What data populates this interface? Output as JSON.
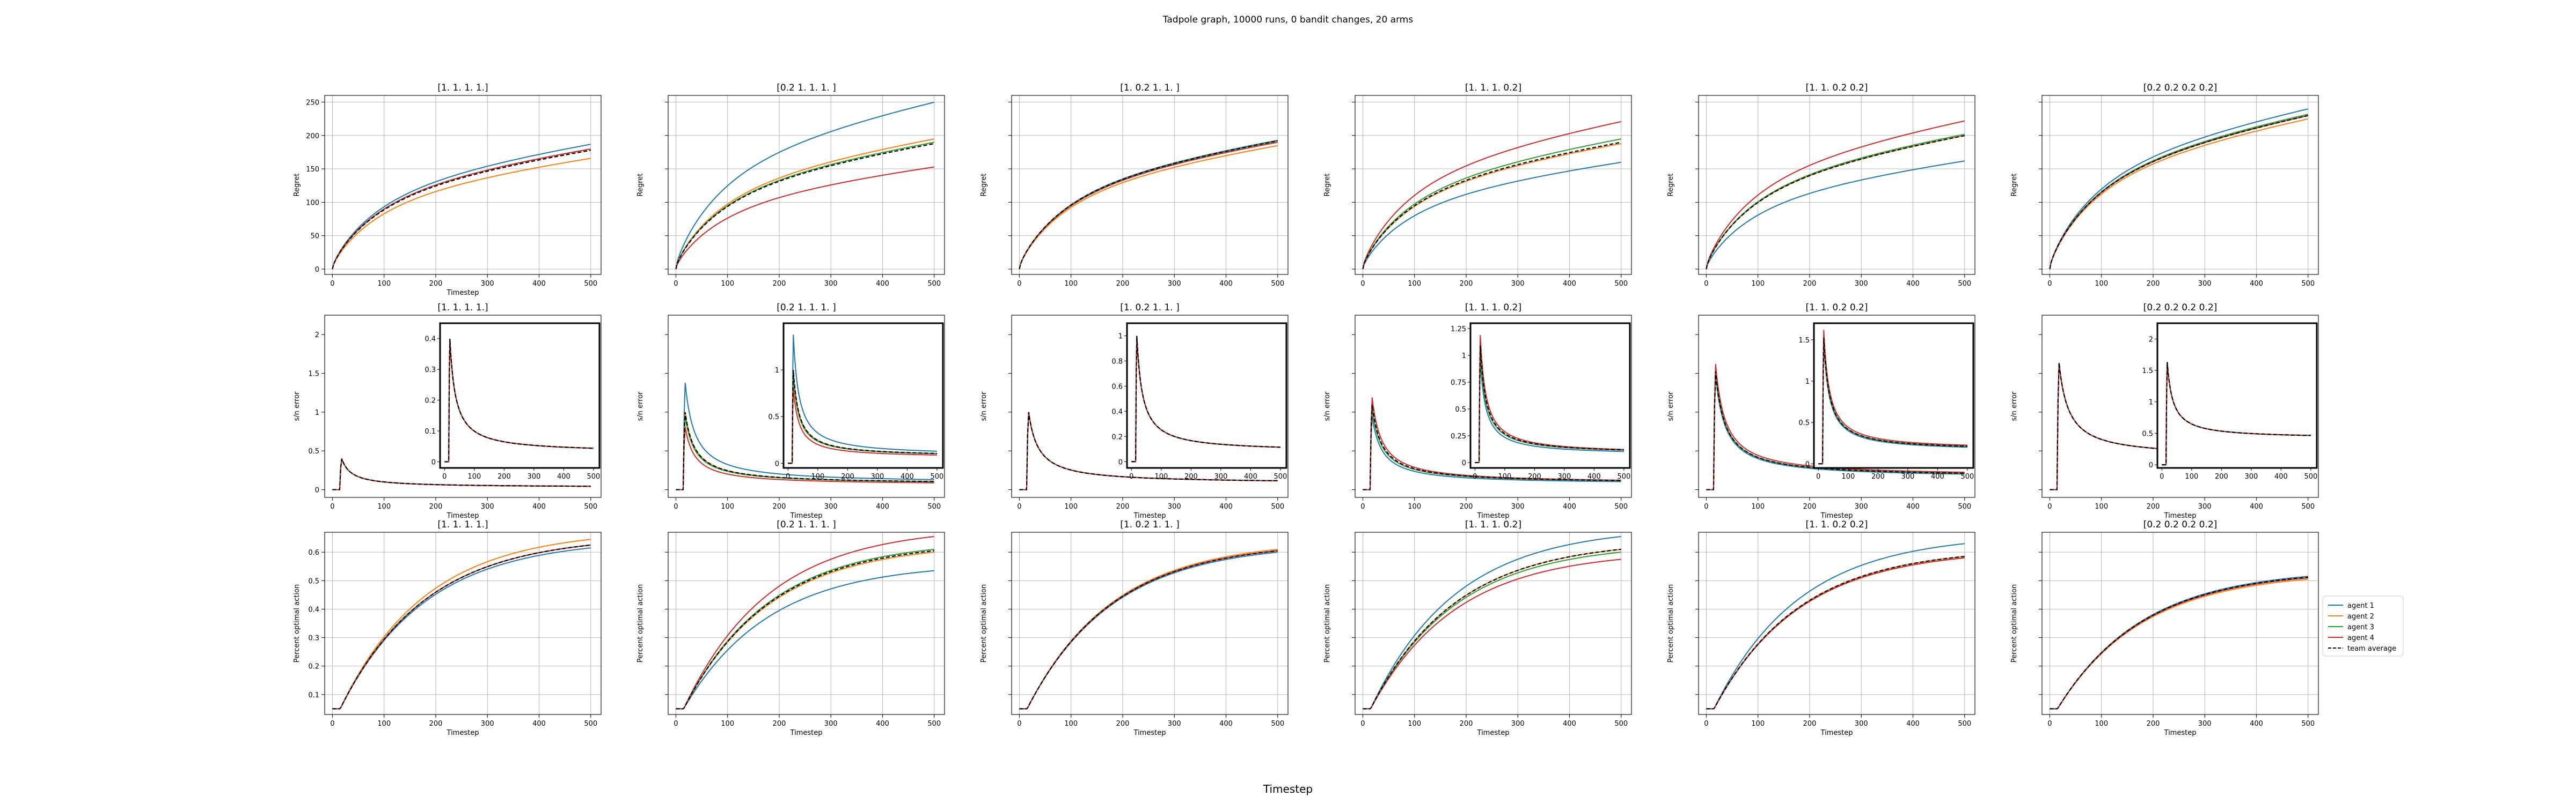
{
  "figure": {
    "suptitle": "Tadpole graph, 10000 runs, 0 bandit changes, 20 arms",
    "xlabel": "Timestep"
  },
  "colors": {
    "agent 1": "#1f77b4",
    "agent 2": "#ff7f0e",
    "agent 3": "#2ca02c",
    "agent 4": "#d62728",
    "team average": "#000000",
    "grid": "#b0b0b0"
  },
  "legend": {
    "location": "right of last bottom panel",
    "entries": [
      "agent 1",
      "agent 2",
      "agent 3",
      "agent 4",
      "team average"
    ]
  },
  "chart_data": [
    {
      "type": "line",
      "row": "regret",
      "title": "[1. 1. 1. 1.]",
      "xlabel": "Timestep",
      "ylabel": "Regret",
      "xlim": [
        -15,
        520
      ],
      "ylim": [
        -8,
        260
      ],
      "xticks": [
        0,
        100,
        200,
        300,
        400,
        500
      ],
      "yticks": [
        0,
        50,
        100,
        150,
        200,
        250
      ],
      "grid": true,
      "series": [
        {
          "name": "agent 1",
          "final": 187
        },
        {
          "name": "agent 2",
          "final": 166
        },
        {
          "name": "agent 3",
          "final": 180
        },
        {
          "name": "agent 4",
          "final": 180
        },
        {
          "name": "team average",
          "final": 178,
          "dashed": true
        }
      ]
    },
    {
      "type": "line",
      "row": "regret",
      "title": "[0.2 1.  1.  1. ]",
      "xlabel": "",
      "ylabel": "Regret",
      "xlim": [
        -15,
        520
      ],
      "ylim": [
        -8,
        260
      ],
      "xticks": [
        0,
        100,
        200,
        300,
        400,
        500
      ],
      "yticks": [],
      "grid": true,
      "series": [
        {
          "name": "agent 1",
          "final": 250
        },
        {
          "name": "agent 2",
          "final": 195
        },
        {
          "name": "agent 3",
          "final": 190
        },
        {
          "name": "agent 4",
          "final": 153
        },
        {
          "name": "team average",
          "final": 188,
          "dashed": true
        }
      ]
    },
    {
      "type": "line",
      "row": "regret",
      "title": "[1.  0.2 1.  1. ]",
      "xlabel": "",
      "ylabel": "Regret",
      "xlim": [
        -15,
        520
      ],
      "ylim": [
        -8,
        260
      ],
      "xticks": [
        0,
        100,
        200,
        300,
        400,
        500
      ],
      "yticks": [],
      "grid": true,
      "series": [
        {
          "name": "agent 1",
          "final": 193
        },
        {
          "name": "agent 2",
          "final": 185
        },
        {
          "name": "agent 3",
          "final": 192
        },
        {
          "name": "agent 4",
          "final": 190
        },
        {
          "name": "team average",
          "final": 192,
          "dashed": true
        }
      ]
    },
    {
      "type": "line",
      "row": "regret",
      "title": "[1.  1.  1.  0.2]",
      "xlabel": "",
      "ylabel": "Regret",
      "xlim": [
        -15,
        520
      ],
      "ylim": [
        -8,
        260
      ],
      "xticks": [
        0,
        100,
        200,
        300,
        400,
        500
      ],
      "yticks": [],
      "grid": true,
      "series": [
        {
          "name": "agent 1",
          "final": 160
        },
        {
          "name": "agent 2",
          "final": 188
        },
        {
          "name": "agent 3",
          "final": 195
        },
        {
          "name": "agent 4",
          "final": 221
        },
        {
          "name": "team average",
          "final": 190,
          "dashed": true
        }
      ]
    },
    {
      "type": "line",
      "row": "regret",
      "title": "[1.  1.  0.2 0.2]",
      "xlabel": "",
      "ylabel": "Regret",
      "xlim": [
        -15,
        520
      ],
      "ylim": [
        -8,
        260
      ],
      "xticks": [
        0,
        100,
        200,
        300,
        400,
        500
      ],
      "yticks": [],
      "grid": true,
      "series": [
        {
          "name": "agent 1",
          "final": 162
        },
        {
          "name": "agent 2",
          "final": 200
        },
        {
          "name": "agent 3",
          "final": 202
        },
        {
          "name": "agent 4",
          "final": 222
        },
        {
          "name": "team average",
          "final": 200,
          "dashed": true
        }
      ]
    },
    {
      "type": "line",
      "row": "regret",
      "title": "[0.2 0.2 0.2 0.2]",
      "xlabel": "",
      "ylabel": "Regret",
      "xlim": [
        -15,
        520
      ],
      "ylim": [
        -8,
        260
      ],
      "xticks": [
        0,
        100,
        200,
        300,
        400,
        500
      ],
      "yticks": [],
      "grid": true,
      "series": [
        {
          "name": "agent 1",
          "final": 240
        },
        {
          "name": "agent 2",
          "final": 225
        },
        {
          "name": "agent 3",
          "final": 232
        },
        {
          "name": "agent 4",
          "final": 230
        },
        {
          "name": "team average",
          "final": 230,
          "dashed": true
        }
      ]
    },
    {
      "type": "line",
      "row": "error",
      "title": "[1. 1. 1. 1.]",
      "xlabel": "Timestep",
      "ylabel": "s/n error",
      "xlim": [
        -15,
        520
      ],
      "ylim": [
        -0.1,
        2.25
      ],
      "xticks": [
        0,
        100,
        200,
        300,
        400,
        500
      ],
      "yticks": [
        0.0,
        0.5,
        1.0,
        1.5,
        2.0
      ],
      "grid": false,
      "series": [
        {
          "name": "agent 1",
          "peak": 0.42,
          "final": 0.03
        },
        {
          "name": "agent 2",
          "peak": 0.42,
          "final": 0.03
        },
        {
          "name": "agent 3",
          "peak": 0.42,
          "final": 0.03
        },
        {
          "name": "agent 4",
          "peak": 0.42,
          "final": 0.03
        },
        {
          "name": "team average",
          "peak": 0.42,
          "final": 0.03,
          "dashed": true
        }
      ],
      "inset": {
        "ylim": [
          -0.02,
          0.45
        ],
        "yticks": [
          0.0,
          0.1,
          0.2,
          0.3,
          0.4
        ],
        "xticks": [
          0,
          100,
          200,
          300,
          400,
          500
        ]
      }
    },
    {
      "type": "line",
      "row": "error",
      "title": "[0.2 1.  1.  1. ]",
      "xlabel": "Timestep",
      "ylabel": "s/n error",
      "xlim": [
        -15,
        520
      ],
      "ylim": [
        -0.1,
        2.25
      ],
      "xticks": [
        0,
        100,
        200,
        300,
        400,
        500
      ],
      "yticks": [],
      "grid": false,
      "series": [
        {
          "name": "agent 1",
          "peak": 1.45,
          "final": 0.08
        },
        {
          "name": "agent 2",
          "peak": 1.05,
          "final": 0.07
        },
        {
          "name": "agent 3",
          "peak": 1.0,
          "final": 0.07
        },
        {
          "name": "agent 4",
          "peak": 0.85,
          "final": 0.06
        },
        {
          "name": "team average",
          "peak": 1.05,
          "final": 0.07,
          "dashed": true
        }
      ],
      "inset": {
        "ylim": [
          -0.05,
          1.5
        ],
        "yticks": [
          0.0,
          0.5,
          1.0
        ],
        "xticks": [
          0,
          100,
          200,
          300,
          400,
          500
        ]
      }
    },
    {
      "type": "line",
      "row": "error",
      "title": "[1.  0.2 1.  1. ]",
      "xlabel": "Timestep",
      "ylabel": "s/n error",
      "xlim": [
        -15,
        520
      ],
      "ylim": [
        -0.1,
        2.25
      ],
      "xticks": [
        0,
        100,
        200,
        300,
        400,
        500
      ],
      "yticks": [],
      "grid": false,
      "series": [
        {
          "name": "agent 1",
          "peak": 1.05,
          "final": 0.08
        },
        {
          "name": "agent 2",
          "peak": 1.05,
          "final": 0.08
        },
        {
          "name": "agent 3",
          "peak": 1.05,
          "final": 0.08
        },
        {
          "name": "agent 4",
          "peak": 1.05,
          "final": 0.08
        },
        {
          "name": "team average",
          "peak": 1.05,
          "final": 0.08,
          "dashed": true
        }
      ],
      "inset": {
        "ylim": [
          -0.05,
          1.1
        ],
        "yticks": [
          0.0,
          0.2,
          0.4,
          0.6,
          0.8,
          1.0
        ],
        "xticks": [
          0,
          100,
          200,
          300,
          400,
          500
        ]
      }
    },
    {
      "type": "line",
      "row": "error",
      "title": "[1.  1.  1.  0.2]",
      "xlabel": "Timestep",
      "ylabel": "s/n error",
      "xlim": [
        -15,
        520
      ],
      "ylim": [
        -0.1,
        2.25
      ],
      "xticks": [
        0,
        100,
        200,
        300,
        400,
        500
      ],
      "yticks": [],
      "grid": false,
      "series": [
        {
          "name": "agent 1",
          "peak": 1.0,
          "final": 0.07
        },
        {
          "name": "agent 2",
          "peak": 1.1,
          "final": 0.08
        },
        {
          "name": "agent 3",
          "peak": 1.1,
          "final": 0.08
        },
        {
          "name": "agent 4",
          "peak": 1.25,
          "final": 0.08
        },
        {
          "name": "team average",
          "peak": 1.15,
          "final": 0.08,
          "dashed": true
        }
      ],
      "inset": {
        "ylim": [
          -0.05,
          1.3
        ],
        "yticks": [
          0.0,
          0.25,
          0.5,
          0.75,
          1.0,
          1.25
        ],
        "xticks": [
          0,
          100,
          200,
          300,
          400,
          500
        ]
      }
    },
    {
      "type": "line",
      "row": "error",
      "title": "[1.  1.  0.2 0.2]",
      "xlabel": "Timestep",
      "ylabel": "s/n error",
      "xlim": [
        -15,
        520
      ],
      "ylim": [
        -0.1,
        2.25
      ],
      "xticks": [
        0,
        100,
        200,
        300,
        400,
        500
      ],
      "yticks": [],
      "grid": false,
      "series": [
        {
          "name": "agent 1",
          "peak": 1.55,
          "final": 0.15
        },
        {
          "name": "agent 2",
          "peak": 1.6,
          "final": 0.16
        },
        {
          "name": "agent 3",
          "peak": 1.6,
          "final": 0.16
        },
        {
          "name": "agent 4",
          "peak": 1.7,
          "final": 0.17
        },
        {
          "name": "team average",
          "peak": 1.6,
          "final": 0.16,
          "dashed": true
        }
      ],
      "inset": {
        "ylim": [
          -0.05,
          1.7
        ],
        "yticks": [
          0.0,
          0.5,
          1.0,
          1.5
        ],
        "xticks": [
          0,
          100,
          200,
          300,
          400,
          500
        ]
      }
    },
    {
      "type": "line",
      "row": "error",
      "title": "[0.2 0.2 0.2 0.2]",
      "xlabel": "Timestep",
      "ylabel": "s/n error",
      "xlim": [
        -15,
        520
      ],
      "ylim": [
        -0.1,
        2.25
      ],
      "xticks": [
        0,
        100,
        200,
        300,
        400,
        500
      ],
      "yticks": [],
      "grid": false,
      "series": [
        {
          "name": "agent 1",
          "peak": 1.7,
          "final": 0.42
        },
        {
          "name": "agent 2",
          "peak": 1.7,
          "final": 0.42
        },
        {
          "name": "agent 3",
          "peak": 1.7,
          "final": 0.42
        },
        {
          "name": "agent 4",
          "peak": 1.7,
          "final": 0.42
        },
        {
          "name": "team average",
          "peak": 1.7,
          "final": 0.42,
          "dashed": true
        }
      ],
      "inset": {
        "ylim": [
          -0.05,
          2.25
        ],
        "yticks": [
          0.0,
          0.5,
          1.0,
          1.5,
          2.0
        ],
        "xticks": [
          0,
          100,
          200,
          300,
          400,
          500
        ]
      }
    },
    {
      "type": "line",
      "row": "poa",
      "title": "[1. 1. 1. 1.]",
      "xlabel": "Timestep",
      "ylabel": "Percent optimal action",
      "xlim": [
        -15,
        520
      ],
      "ylim": [
        0.03,
        0.67
      ],
      "xticks": [
        0,
        100,
        200,
        300,
        400,
        500
      ],
      "yticks": [
        0.1,
        0.2,
        0.3,
        0.4,
        0.5,
        0.6
      ],
      "grid": true,
      "series": [
        {
          "name": "agent 1",
          "final": 0.615
        },
        {
          "name": "agent 2",
          "final": 0.645
        },
        {
          "name": "agent 3",
          "final": 0.625
        },
        {
          "name": "agent 4",
          "final": 0.625
        },
        {
          "name": "team average",
          "final": 0.625,
          "dashed": true
        }
      ]
    },
    {
      "type": "line",
      "row": "poa",
      "title": "[0.2 1.  1.  1. ]",
      "xlabel": "Timestep",
      "ylabel": "Percent optimal action",
      "xlim": [
        -15,
        520
      ],
      "ylim": [
        0.03,
        0.67
      ],
      "xticks": [
        0,
        100,
        200,
        300,
        400,
        500
      ],
      "yticks": [],
      "grid": true,
      "series": [
        {
          "name": "agent 1",
          "final": 0.535
        },
        {
          "name": "agent 2",
          "final": 0.6
        },
        {
          "name": "agent 3",
          "final": 0.61
        },
        {
          "name": "agent 4",
          "final": 0.655
        },
        {
          "name": "team average",
          "final": 0.605,
          "dashed": true
        }
      ]
    },
    {
      "type": "line",
      "row": "poa",
      "title": "[1.  0.2 1.  1. ]",
      "xlabel": "Timestep",
      "ylabel": "Percent optimal action",
      "xlim": [
        -15,
        520
      ],
      "ylim": [
        0.03,
        0.67
      ],
      "xticks": [
        0,
        100,
        200,
        300,
        400,
        500
      ],
      "yticks": [],
      "grid": true,
      "series": [
        {
          "name": "agent 1",
          "final": 0.6
        },
        {
          "name": "agent 2",
          "final": 0.61
        },
        {
          "name": "agent 3",
          "final": 0.605
        },
        {
          "name": "agent 4",
          "final": 0.605
        },
        {
          "name": "team average",
          "final": 0.605,
          "dashed": true
        }
      ]
    },
    {
      "type": "line",
      "row": "poa",
      "title": "[1.  1.  1.  0.2]",
      "xlabel": "Timestep",
      "ylabel": "Percent optimal action",
      "xlim": [
        -15,
        520
      ],
      "ylim": [
        0.03,
        0.67
      ],
      "xticks": [
        0,
        100,
        200,
        300,
        400,
        500
      ],
      "yticks": [],
      "grid": true,
      "series": [
        {
          "name": "agent 1",
          "final": 0.655
        },
        {
          "name": "agent 2",
          "final": 0.61
        },
        {
          "name": "agent 3",
          "final": 0.6
        },
        {
          "name": "agent 4",
          "final": 0.575
        },
        {
          "name": "team average",
          "final": 0.61,
          "dashed": true
        }
      ]
    },
    {
      "type": "line",
      "row": "poa",
      "title": "[1.  1.  0.2 0.2]",
      "xlabel": "Timestep",
      "ylabel": "Percent optimal action",
      "xlim": [
        -15,
        520
      ],
      "ylim": [
        0.03,
        0.67
      ],
      "xticks": [
        0,
        100,
        200,
        300,
        400,
        500
      ],
      "yticks": [],
      "grid": true,
      "series": [
        {
          "name": "agent 1",
          "final": 0.63
        },
        {
          "name": "agent 2",
          "final": 0.585
        },
        {
          "name": "agent 3",
          "final": 0.58
        },
        {
          "name": "agent 4",
          "final": 0.58
        },
        {
          "name": "team average",
          "final": 0.585,
          "dashed": true
        }
      ]
    },
    {
      "type": "line",
      "row": "poa",
      "title": "[0.2 0.2 0.2 0.2]",
      "xlabel": "Timestep",
      "ylabel": "Percent optimal action",
      "xlim": [
        -15,
        520
      ],
      "ylim": [
        0.03,
        0.67
      ],
      "xticks": [
        0,
        100,
        200,
        300,
        400,
        500
      ],
      "yticks": [],
      "grid": true,
      "series": [
        {
          "name": "agent 1",
          "final": 0.515
        },
        {
          "name": "agent 2",
          "final": 0.505
        },
        {
          "name": "agent 3",
          "final": 0.51
        },
        {
          "name": "agent 4",
          "final": 0.51
        },
        {
          "name": "team average",
          "final": 0.512,
          "dashed": true
        }
      ]
    }
  ]
}
